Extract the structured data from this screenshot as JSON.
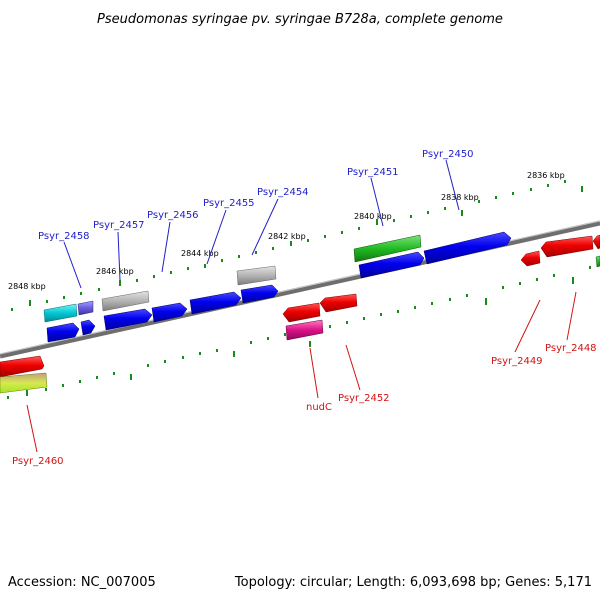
{
  "title": "Pseudomonas syringae pv. syringae B728a, complete genome",
  "footer": {
    "accession": "Accession: NC_007005",
    "summary": "Topology: circular; Length: 6,093,698 bp; Genes: 5,171"
  },
  "kbp_labels": [
    "2848 kbp",
    "2846 kbp",
    "2844 kbp",
    "2842 kbp",
    "2840 kbp",
    "2838 kbp",
    "2836 kbp"
  ],
  "genes_top": [
    "Psyr_2458",
    "Psyr_2457",
    "Psyr_2456",
    "Psyr_2455",
    "Psyr_2454",
    "Psyr_2451",
    "Psyr_2450"
  ],
  "genes_bottom": [
    "Psyr_2460",
    "nudC",
    "Psyr_2452",
    "Psyr_2449",
    "Psyr_2448"
  ],
  "colors": {
    "forward": "#0000dd",
    "reverse": "#ee0000",
    "cyan": "#00c8d2",
    "green": "#22bb22",
    "grey": "#b4b4b4",
    "magenta": "#dd1188",
    "lime": "#b0ee20",
    "tick": "#1a8a1a",
    "backbone": "#7a7a7a"
  }
}
